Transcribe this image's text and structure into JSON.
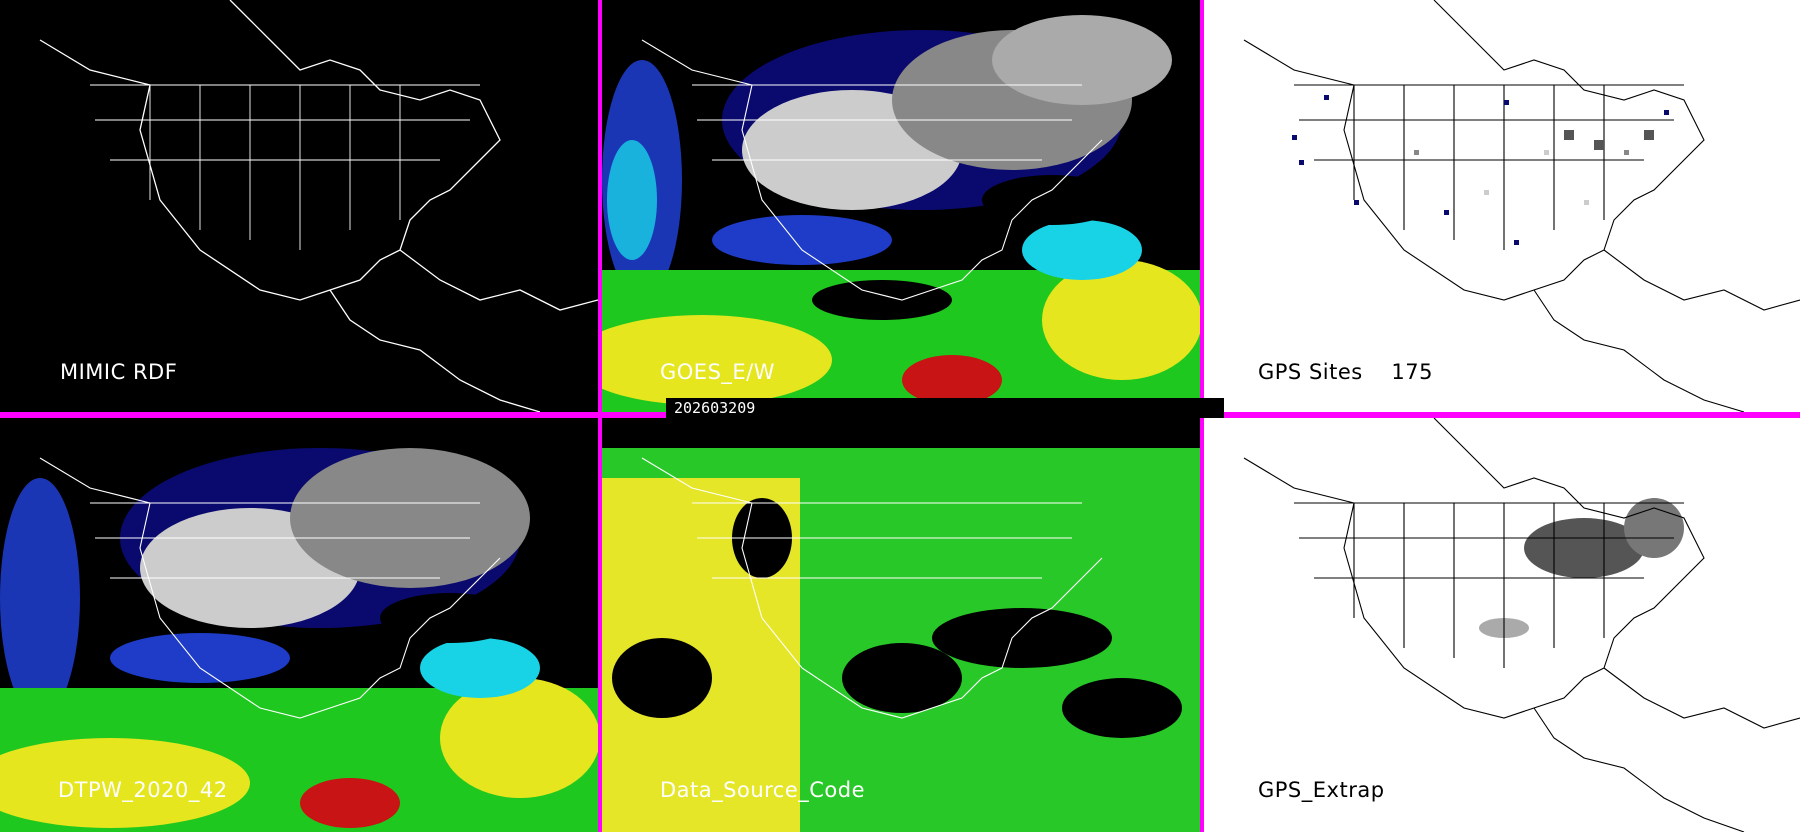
{
  "panels": {
    "top_left": {
      "label": "MIMIC RDF",
      "background": "#000000"
    },
    "top_middle": {
      "label": "GOES_E/W",
      "background": "#000000"
    },
    "top_right": {
      "label": "GPS Sites    175",
      "background": "#ffffff"
    },
    "bottom_left": {
      "label": "DTPW_2020_42",
      "background": "#000000"
    },
    "bottom_middle": {
      "label": "Data_Source_Code",
      "background": "#000000"
    },
    "bottom_right": {
      "label": "GPS_Extrap",
      "background": "#ffffff"
    }
  },
  "timestamp": "202603209",
  "colors": {
    "divider": "#ff00ff",
    "coastline_dark": "#ffffff",
    "coastline_light": "#000000",
    "pw_very_low": "#0a0a6e",
    "pw_low": "#1e3cc8",
    "pw_mid_low": "#18d2e6",
    "pw_mid": "#1ec81e",
    "pw_high": "#e6e61e",
    "pw_very_high": "#c81414",
    "gray_dark": "#555555",
    "gray_light": "#cccccc",
    "source_yellow": "#e6e628",
    "source_green": "#28c828"
  }
}
